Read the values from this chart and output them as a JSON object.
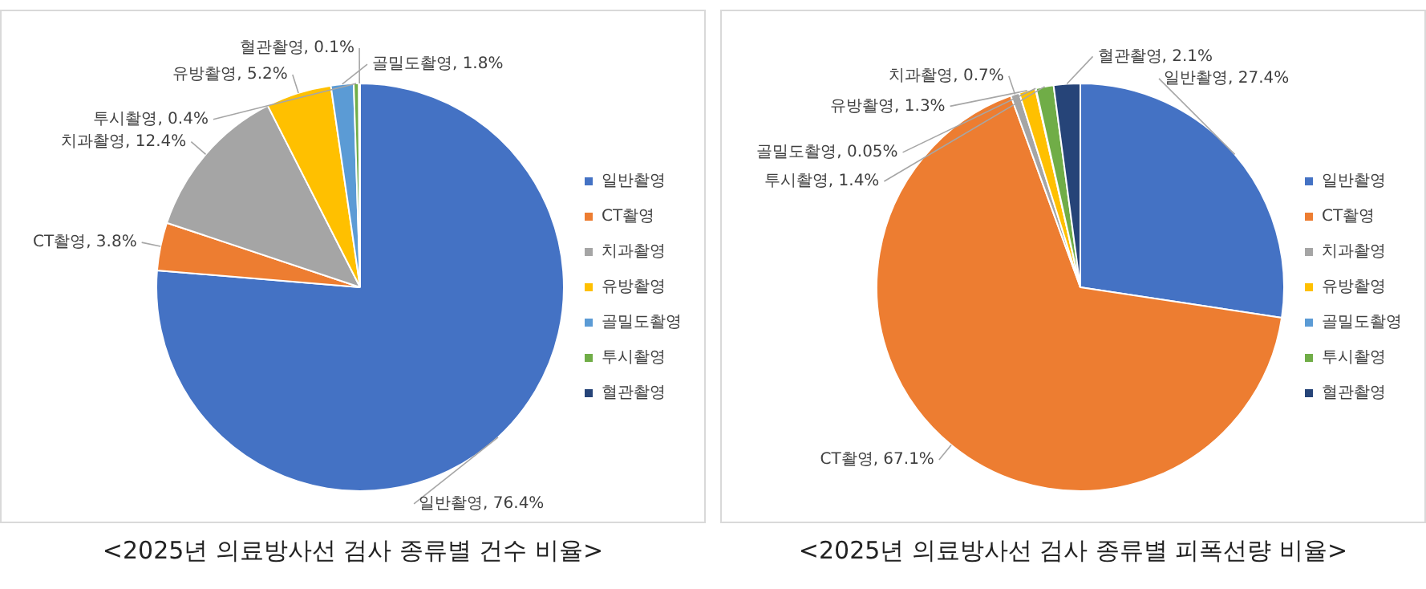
{
  "chart_data": [
    {
      "type": "pie",
      "title": "<2025년 의료방사선 검사 종류별 건수 비율>",
      "categories": [
        "일반촬영",
        "CT촬영",
        "치과촬영",
        "유방촬영",
        "골밀도촬영",
        "투시촬영",
        "혈관촬영"
      ],
      "values": [
        76.4,
        3.8,
        12.4,
        5.2,
        1.8,
        0.4,
        0.1
      ],
      "colors": [
        "#4472c4",
        "#ed7d31",
        "#a5a5a5",
        "#ffc000",
        "#5b9bd5",
        "#70ad47",
        "#264478"
      ],
      "value_labels": [
        "일반촬영, 76.4%",
        "CT촬영, 3.8%",
        "치과촬영, 12.4%",
        "유방촬영, 5.2%",
        "골밀도촬영, 1.8%",
        "투시촬영, 0.4%",
        "혈관촬영, 0.1%"
      ],
      "legend": "right"
    },
    {
      "type": "pie",
      "title": "<2025년 의료방사선 검사 종류별 피폭선량 비율>",
      "categories": [
        "일반촬영",
        "CT촬영",
        "치과촬영",
        "유방촬영",
        "골밀도촬영",
        "투시촬영",
        "혈관촬영"
      ],
      "values": [
        27.4,
        67.1,
        0.7,
        1.3,
        0.05,
        1.4,
        2.1
      ],
      "colors": [
        "#4472c4",
        "#ed7d31",
        "#a5a5a5",
        "#ffc000",
        "#5b9bd5",
        "#70ad47",
        "#264478"
      ],
      "value_labels": [
        "일반촬영, 27.4%",
        "CT촬영, 67.1%",
        "치과촬영, 0.7%",
        "유방촬영, 1.3%",
        "골밀도촬영, 0.05%",
        "투시촬영, 1.4%",
        "혈관촬영, 2.1%"
      ],
      "legend": "right"
    }
  ]
}
